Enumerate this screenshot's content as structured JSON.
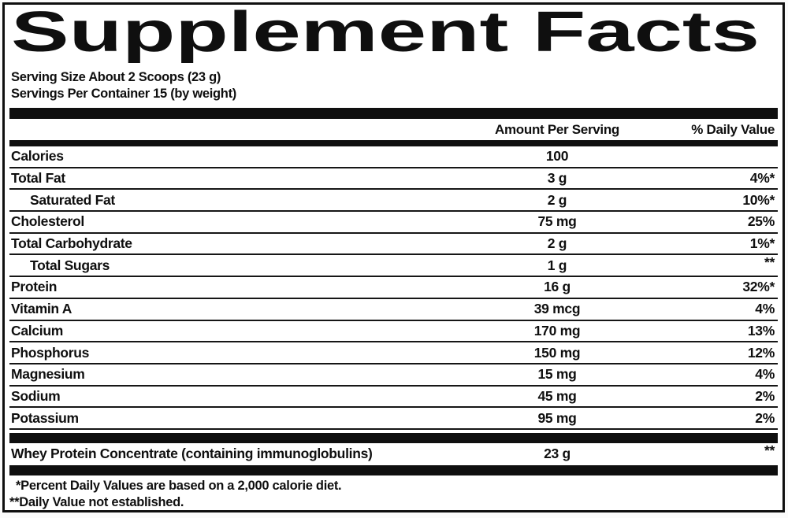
{
  "label": {
    "title": "Supplement Facts",
    "serving_info": {
      "serving_size": "Serving Size About 2 Scoops (23 g)",
      "servings_per_container": "Servings Per Container 15 (by weight)"
    },
    "table": {
      "amount_header": "Amount Per Serving",
      "daily_value_header": "% Daily Value",
      "rows": [
        {
          "name": "Calories",
          "amount": "100",
          "daily_value": "",
          "indent": false
        },
        {
          "name": "Total Fat",
          "amount": "3 g",
          "daily_value": "4%*",
          "indent": false
        },
        {
          "name": "Saturated Fat",
          "amount": "2 g",
          "daily_value": "10%*",
          "indent": true
        },
        {
          "name": "Cholesterol",
          "amount": "75 mg",
          "daily_value": "25%",
          "indent": false
        },
        {
          "name": "Total Carbohydrate",
          "amount": "2 g",
          "daily_value": "1%*",
          "indent": false
        },
        {
          "name": "Total Sugars",
          "amount": "1 g",
          "daily_value": "**",
          "indent": true
        },
        {
          "name": "Protein",
          "amount": "16 g",
          "daily_value": "32%*",
          "indent": false
        },
        {
          "name": "Vitamin A",
          "amount": "39 mcg",
          "daily_value": "4%",
          "indent": false
        },
        {
          "name": "Calcium",
          "amount": "170 mg",
          "daily_value": "13%",
          "indent": false
        },
        {
          "name": "Phosphorus",
          "amount": "150 mg",
          "daily_value": "12%",
          "indent": false
        },
        {
          "name": "Magnesium",
          "amount": "15 mg",
          "daily_value": "4%",
          "indent": false
        },
        {
          "name": "Sodium",
          "amount": "45 mg",
          "daily_value": "2%",
          "indent": false
        },
        {
          "name": "Potassium",
          "amount": "95 mg",
          "daily_value": "2%",
          "indent": false
        }
      ],
      "separated_rows": [
        {
          "name": "Whey Protein Concentrate (containing immunoglobulins)",
          "amount": "23 g",
          "daily_value": "**",
          "indent": false
        }
      ]
    },
    "footnotes": {
      "daily_values_note": "*Percent Daily Values are based on a 2,000 calorie diet.",
      "not_established_note": "**Daily Value not established."
    },
    "colors": {
      "ink": "#0f0f0f",
      "label_background": "#ffffff"
    }
  }
}
